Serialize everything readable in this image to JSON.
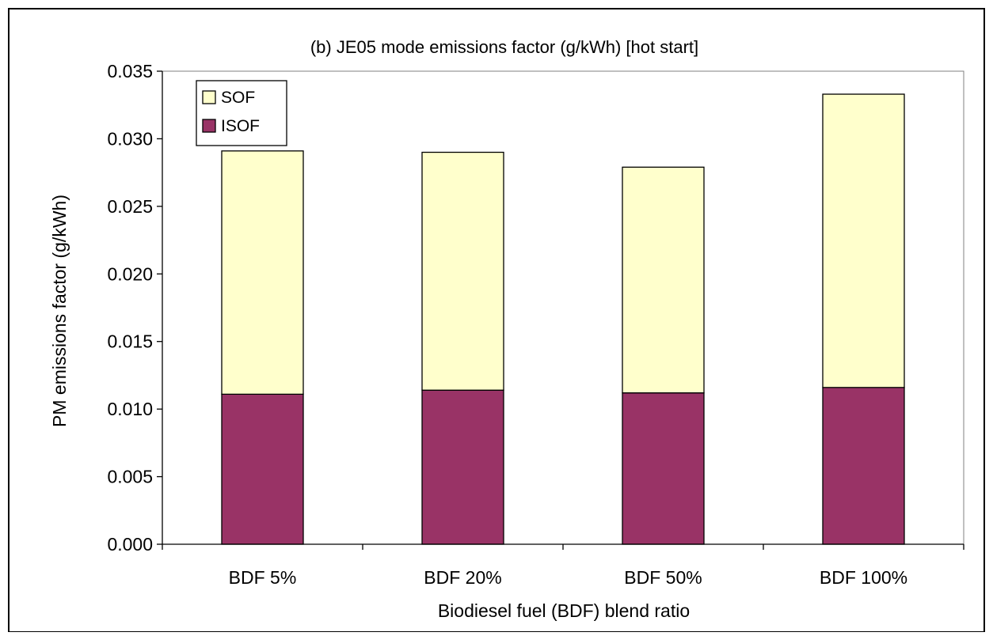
{
  "chart_data": {
    "type": "bar",
    "stacked": true,
    "title": "(b) JE05 mode emissions factor (g/kWh) [hot start]",
    "xlabel": "Biodiesel fuel (BDF) blend ratio",
    "ylabel": "PM emissions factor (g/kWh)",
    "categories": [
      "BDF 5%",
      "BDF 20%",
      "BDF 50%",
      "BDF 100%"
    ],
    "series": [
      {
        "name": "ISOF",
        "values": [
          0.0111,
          0.0114,
          0.0112,
          0.0116
        ],
        "color": "#993366"
      },
      {
        "name": "SOF",
        "values": [
          0.018,
          0.0176,
          0.0167,
          0.0217
        ],
        "color": "#FFFFCC"
      }
    ],
    "ylim": [
      0,
      0.035
    ],
    "yticks": [
      "0.000",
      "0.005",
      "0.010",
      "0.015",
      "0.020",
      "0.025",
      "0.030",
      "0.035"
    ],
    "grid": false,
    "legend": {
      "position": "top-left",
      "order": [
        "SOF",
        "ISOF"
      ]
    }
  }
}
